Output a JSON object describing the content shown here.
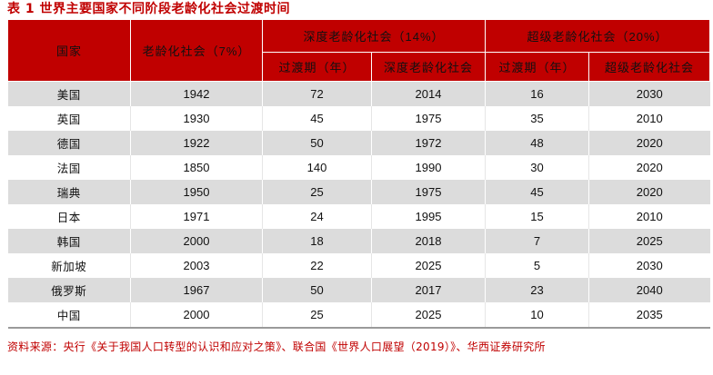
{
  "title": "表 1   世界主要国家不同阶段老龄化社会过渡时间",
  "header": {
    "country": "国家",
    "aging": "老龄化社会（7%）",
    "deep": "深度老龄化社会（14%）",
    "super": "超级老龄化社会（20%）",
    "transition": "过渡期（年）",
    "deep_col": "深度老龄化社会",
    "super_col": "超级老龄化社会"
  },
  "rows": [
    {
      "country": "美国",
      "aging": "1942",
      "deep_trans": "72",
      "deep_year": "2014",
      "super_trans": "16",
      "super_year": "2030"
    },
    {
      "country": "英国",
      "aging": "1930",
      "deep_trans": "45",
      "deep_year": "1975",
      "super_trans": "35",
      "super_year": "2010"
    },
    {
      "country": "德国",
      "aging": "1922",
      "deep_trans": "50",
      "deep_year": "1972",
      "super_trans": "48",
      "super_year": "2020"
    },
    {
      "country": "法国",
      "aging": "1850",
      "deep_trans": "140",
      "deep_year": "1990",
      "super_trans": "30",
      "super_year": "2020"
    },
    {
      "country": "瑞典",
      "aging": "1950",
      "deep_trans": "25",
      "deep_year": "1975",
      "super_trans": "45",
      "super_year": "2020"
    },
    {
      "country": "日本",
      "aging": "1971",
      "deep_trans": "24",
      "deep_year": "1995",
      "super_trans": "15",
      "super_year": "2010"
    },
    {
      "country": "韩国",
      "aging": "2000",
      "deep_trans": "18",
      "deep_year": "2018",
      "super_trans": "7",
      "super_year": "2025"
    },
    {
      "country": "新加坡",
      "aging": "2003",
      "deep_trans": "22",
      "deep_year": "2025",
      "super_trans": "5",
      "super_year": "2030"
    },
    {
      "country": "俄罗斯",
      "aging": "1967",
      "deep_trans": "50",
      "deep_year": "2017",
      "super_trans": "23",
      "super_year": "2040"
    },
    {
      "country": "中国",
      "aging": "2000",
      "deep_trans": "25",
      "deep_year": "2025",
      "super_trans": "10",
      "super_year": "2035"
    }
  ],
  "source": "资料来源：央行《关于我国人口转型的认识和应对之策》、联合国《世界人口展望（2019）》、华西证券研究所"
}
